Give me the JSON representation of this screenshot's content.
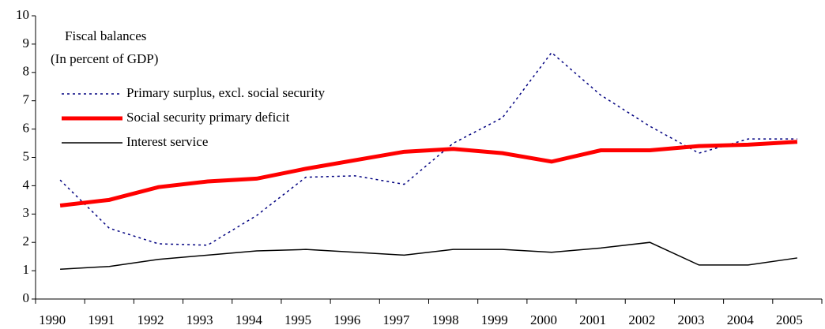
{
  "chart_data": {
    "type": "line",
    "title": "Fiscal balances",
    "subtitle": "(In percent of GDP)",
    "categories": [
      "1990",
      "1991",
      "1992",
      "1993",
      "1994",
      "1995",
      "1996",
      "1997",
      "1998",
      "1999",
      "2000",
      "2001",
      "2002",
      "2003",
      "2004",
      "2005"
    ],
    "series": [
      {
        "name": "Primary surplus, excl. social security",
        "color": "#000080",
        "style": "dotted",
        "values": [
          4.2,
          2.5,
          1.95,
          1.9,
          2.95,
          4.3,
          4.35,
          4.05,
          5.5,
          6.4,
          8.7,
          7.2,
          6.1,
          5.15,
          5.65,
          5.65
        ]
      },
      {
        "name": "Social security primary deficit",
        "color": "#ff0000",
        "style": "thick",
        "values": [
          3.3,
          3.5,
          3.95,
          4.15,
          4.25,
          4.6,
          4.9,
          5.2,
          5.3,
          5.15,
          4.85,
          5.25,
          5.25,
          5.4,
          5.45,
          5.55
        ]
      },
      {
        "name": "Interest service",
        "color": "#000000",
        "style": "solid",
        "values": [
          1.05,
          1.15,
          1.4,
          1.55,
          1.7,
          1.75,
          1.65,
          1.55,
          1.75,
          1.75,
          1.65,
          1.8,
          2.0,
          1.2,
          1.2,
          1.45
        ]
      }
    ],
    "ylim": [
      0,
      10
    ],
    "yticks": [
      0,
      1,
      2,
      3,
      4,
      5,
      6,
      7,
      8,
      9,
      10
    ],
    "grid": false,
    "legend": "upper-left"
  }
}
